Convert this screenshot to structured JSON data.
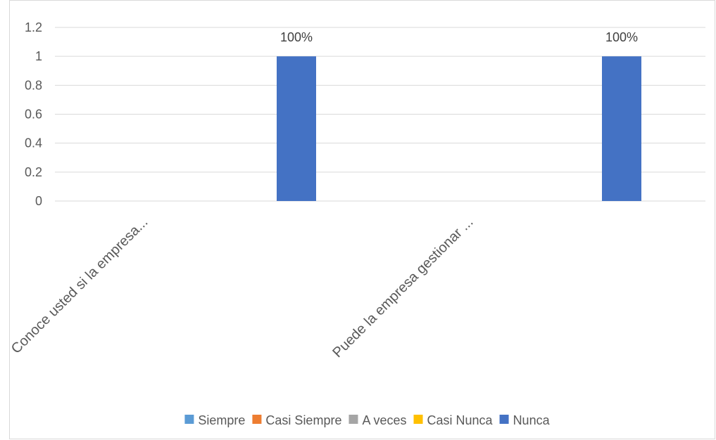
{
  "chart_data": {
    "type": "bar",
    "categories": [
      "Conoce usted si la empresa...",
      "Puede la empresa gestionar ..."
    ],
    "series": [
      {
        "name": "Siempre",
        "color": "#5b9bd5",
        "values": [
          0,
          0
        ]
      },
      {
        "name": "Casi Siempre",
        "color": "#ed7d31",
        "values": [
          0,
          0
        ]
      },
      {
        "name": "A veces",
        "color": "#a5a5a5",
        "values": [
          0,
          0
        ]
      },
      {
        "name": "Casi Nunca",
        "color": "#ffc000",
        "values": [
          0,
          0
        ]
      },
      {
        "name": "Nunca",
        "color": "#4472c4",
        "values": [
          1,
          1
        ]
      }
    ],
    "data_labels": [
      "100%",
      "100%"
    ],
    "yticks": [
      "0",
      "0.2",
      "0.4",
      "0.6",
      "0.8",
      "1",
      "1.2"
    ],
    "ylim": [
      0,
      1.2
    ],
    "grid": true,
    "legend": "bottom",
    "title": "",
    "xlabel": "",
    "ylabel": ""
  }
}
